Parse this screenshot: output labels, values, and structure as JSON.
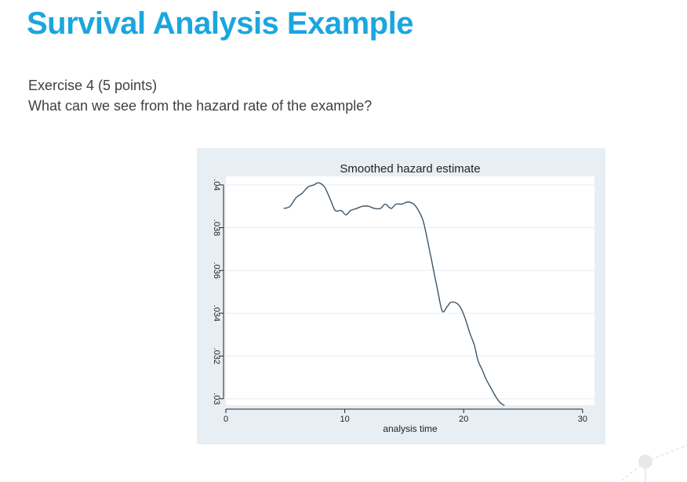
{
  "slide": {
    "title": "Survival Analysis Example",
    "body_line1": "Exercise 4 (5 points)",
    "body_line2": "What can we see from the hazard rate of the example?",
    "title_color": "#1aa6de",
    "body_color": "#404040"
  },
  "chart_data": {
    "type": "line",
    "title": "Smoothed hazard estimate",
    "xlabel": "analysis time",
    "ylabel": "",
    "xlim": [
      0,
      31
    ],
    "ylim": [
      0.0297,
      0.0404
    ],
    "xticks": [
      0,
      10,
      20,
      30
    ],
    "xtick_labels": [
      "0",
      "10",
      "20",
      "30"
    ],
    "yticks": [
      0.03,
      0.032,
      0.034,
      0.036,
      0.038,
      0.04
    ],
    "ytick_labels": [
      ".03",
      ".032",
      ".034",
      ".036",
      ".038",
      ".04"
    ],
    "grid": true,
    "legend": "none",
    "colors": {
      "panel_background": "#e8eff4",
      "plot_background": "#ffffff",
      "line": "#3d5566",
      "grid": "#e6ebef"
    },
    "series": [
      {
        "x": [
          4.9,
          5.4,
          5.9,
          6.4,
          6.9,
          7.4,
          7.8,
          8.3,
          8.8,
          9.2,
          9.7,
          10.1,
          10.5,
          11.0,
          11.5,
          12.0,
          12.5,
          13.0,
          13.4,
          13.9,
          14.3,
          14.8,
          15.3,
          15.8,
          16.2,
          16.6,
          17.0,
          17.4,
          17.8,
          18.2,
          18.6,
          18.9,
          19.3,
          19.7,
          20.1,
          20.5,
          20.9,
          21.2,
          21.6,
          21.9,
          22.3,
          22.7,
          23.1,
          23.4
        ],
        "y": [
          0.0389,
          0.039,
          0.0394,
          0.0396,
          0.0399,
          0.04,
          0.0401,
          0.0399,
          0.0393,
          0.0388,
          0.0388,
          0.0386,
          0.0388,
          0.0389,
          0.039,
          0.039,
          0.0389,
          0.0389,
          0.0391,
          0.0389,
          0.0391,
          0.0391,
          0.0392,
          0.0391,
          0.0388,
          0.0383,
          0.0373,
          0.0362,
          0.0351,
          0.0341,
          0.0343,
          0.0345,
          0.0345,
          0.0343,
          0.0338,
          0.0331,
          0.0325,
          0.0318,
          0.0313,
          0.0309,
          0.0305,
          0.0301,
          0.0298,
          0.0297
        ]
      }
    ]
  }
}
